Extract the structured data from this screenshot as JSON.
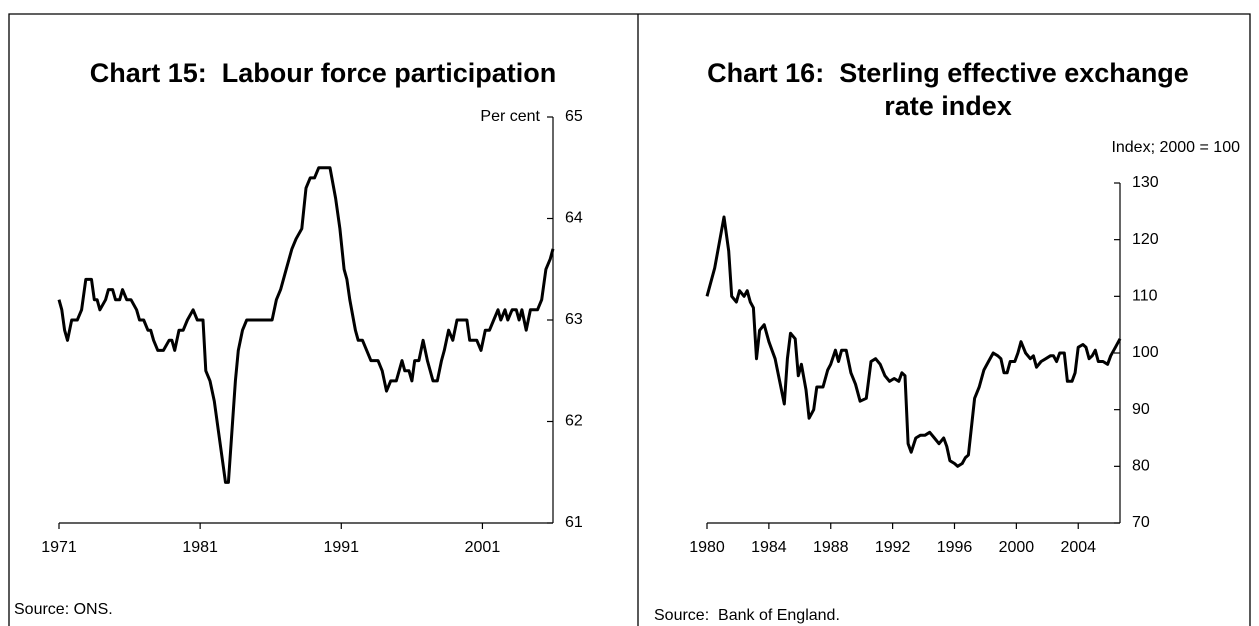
{
  "chart_data": [
    {
      "type": "line",
      "title": [
        "Chart 15:  Labour force participation"
      ],
      "y_label": "Per cent",
      "source": "Source: ONS.",
      "color": "#000000",
      "xlim": [
        1971,
        2006
      ],
      "xticks": [
        1971,
        1981,
        1991,
        2001
      ],
      "ylim": [
        61,
        65
      ],
      "yticks": [
        61,
        62,
        63,
        64,
        65
      ],
      "x": [
        1971.0,
        1971.2,
        1971.4,
        1971.6,
        1971.9,
        1972.3,
        1972.6,
        1972.9,
        1973.3,
        1973.5,
        1973.7,
        1973.9,
        1974.3,
        1974.5,
        1974.8,
        1975.0,
        1975.3,
        1975.5,
        1975.8,
        1976.1,
        1976.5,
        1976.7,
        1977.0,
        1977.3,
        1977.5,
        1977.7,
        1978.0,
        1978.4,
        1978.8,
        1979.0,
        1979.2,
        1979.5,
        1979.8,
        1980.1,
        1980.5,
        1980.8,
        1981.2,
        1981.4,
        1981.7,
        1982.0,
        1982.3,
        1982.6,
        1982.8,
        1983.0,
        1983.3,
        1983.5,
        1983.7,
        1984.0,
        1984.3,
        1986.1,
        1986.4,
        1986.7,
        1987.1,
        1987.5,
        1987.8,
        1988.2,
        1988.5,
        1988.8,
        1989.1,
        1989.4,
        1990.2,
        1990.6,
        1990.9,
        1991.2,
        1991.4,
        1991.6,
        1992.0,
        1992.2,
        1992.5,
        1992.8,
        1993.1,
        1993.6,
        1993.9,
        1994.2,
        1994.5,
        1994.9,
        1995.3,
        1995.5,
        1995.8,
        1996.0,
        1996.2,
        1996.5,
        1996.8,
        1997.1,
        1997.5,
        1997.8,
        1998.1,
        1998.3,
        1998.6,
        1998.9,
        1999.2,
        1999.9,
        2000.1,
        2000.6,
        2000.9,
        2001.2,
        2001.5,
        2001.8,
        2002.1,
        2002.3,
        2002.6,
        2002.8,
        2003.1,
        2003.4,
        2003.6,
        2003.8,
        2004.1,
        2004.4,
        2004.9,
        2005.2,
        2005.5,
        2005.8,
        2006.0
      ],
      "values": [
        63.2,
        63.1,
        62.9,
        62.8,
        63.0,
        63.0,
        63.1,
        63.4,
        63.4,
        63.2,
        63.2,
        63.1,
        63.2,
        63.3,
        63.3,
        63.2,
        63.2,
        63.3,
        63.2,
        63.2,
        63.1,
        63.0,
        63.0,
        62.9,
        62.9,
        62.8,
        62.7,
        62.7,
        62.8,
        62.8,
        62.7,
        62.9,
        62.9,
        63.0,
        63.1,
        63.0,
        63.0,
        62.5,
        62.4,
        62.2,
        61.9,
        61.6,
        61.4,
        61.4,
        62.0,
        62.4,
        62.7,
        62.9,
        63.0,
        63.0,
        63.2,
        63.3,
        63.5,
        63.7,
        63.8,
        63.9,
        64.3,
        64.4,
        64.4,
        64.5,
        64.5,
        64.2,
        63.9,
        63.5,
        63.4,
        63.2,
        62.9,
        62.8,
        62.8,
        62.7,
        62.6,
        62.6,
        62.5,
        62.3,
        62.4,
        62.4,
        62.6,
        62.5,
        62.5,
        62.4,
        62.6,
        62.6,
        62.8,
        62.6,
        62.4,
        62.4,
        62.6,
        62.7,
        62.9,
        62.8,
        63.0,
        63.0,
        62.8,
        62.8,
        62.7,
        62.9,
        62.9,
        63.0,
        63.1,
        63.0,
        63.1,
        63.0,
        63.1,
        63.1,
        63.0,
        63.1,
        62.9,
        63.1,
        63.1,
        63.2,
        63.5,
        63.6,
        63.7
      ]
    },
    {
      "type": "line",
      "title": [
        "Chart 16:  Sterling effective exchange",
        "rate index"
      ],
      "y_label": "Index; 2000 = 100",
      "source": "Source:  Bank of England.",
      "color": "#000000",
      "xlim": [
        1980,
        2006.7
      ],
      "xticks": [
        1980,
        1984,
        1988,
        1992,
        1996,
        2000,
        2004
      ],
      "ylim": [
        70,
        130
      ],
      "yticks": [
        70,
        80,
        90,
        100,
        110,
        120,
        130
      ],
      "x": [
        1980.0,
        1980.5,
        1980.9,
        1981.1,
        1981.4,
        1981.6,
        1981.9,
        1982.1,
        1982.4,
        1982.6,
        1982.8,
        1983.0,
        1983.2,
        1983.4,
        1983.7,
        1984.0,
        1984.4,
        1984.7,
        1985.0,
        1985.2,
        1985.4,
        1985.7,
        1985.9,
        1986.1,
        1986.4,
        1986.6,
        1986.9,
        1987.1,
        1987.5,
        1987.8,
        1988.0,
        1988.3,
        1988.5,
        1988.7,
        1989.0,
        1989.3,
        1989.6,
        1989.9,
        1990.3,
        1990.6,
        1990.9,
        1991.2,
        1991.5,
        1991.8,
        1992.1,
        1992.4,
        1992.6,
        1992.8,
        1993.0,
        1993.2,
        1993.5,
        1993.8,
        1994.1,
        1994.4,
        1994.7,
        1995.0,
        1995.3,
        1995.5,
        1995.7,
        1996.0,
        1996.2,
        1996.5,
        1996.7,
        1996.9,
        1997.1,
        1997.3,
        1997.6,
        1997.9,
        1998.2,
        1998.5,
        1998.8,
        1999.0,
        1999.2,
        1999.4,
        1999.6,
        1999.9,
        2000.1,
        2000.3,
        2000.6,
        2000.9,
        2001.1,
        2001.3,
        2001.6,
        2001.9,
        2002.2,
        2002.4,
        2002.6,
        2002.8,
        2003.1,
        2003.3,
        2003.6,
        2003.8,
        2004.0,
        2004.3,
        2004.5,
        2004.7,
        2004.9,
        2005.1,
        2005.3,
        2005.6,
        2005.9,
        2006.1,
        2006.4,
        2006.7
      ],
      "values": [
        110,
        115,
        121,
        124,
        118,
        110,
        109,
        111,
        110,
        111,
        109,
        108,
        99,
        104,
        105,
        102,
        99,
        95,
        91,
        99,
        103.5,
        102.5,
        96,
        98,
        93.5,
        88.5,
        90,
        94,
        94,
        97,
        98,
        100.5,
        98.5,
        100.5,
        100.5,
        96.5,
        94.5,
        91.5,
        92,
        98.5,
        99,
        98,
        96,
        95,
        95.5,
        95,
        96.5,
        96,
        84,
        82.5,
        85,
        85.5,
        85.5,
        86,
        85,
        84,
        85,
        83.5,
        81,
        80.5,
        80,
        80.5,
        81.5,
        82,
        87,
        92,
        94,
        97,
        98.5,
        100,
        99.5,
        99,
        96.5,
        96.5,
        98.5,
        98.5,
        100,
        102,
        100,
        99,
        99.5,
        97.5,
        98.5,
        99,
        99.5,
        99.5,
        98.5,
        100,
        100,
        95,
        95,
        96.5,
        101,
        101.5,
        101,
        99,
        99.5,
        100.5,
        98.5,
        98.5,
        98,
        99.5,
        101,
        102.5
      ]
    }
  ]
}
